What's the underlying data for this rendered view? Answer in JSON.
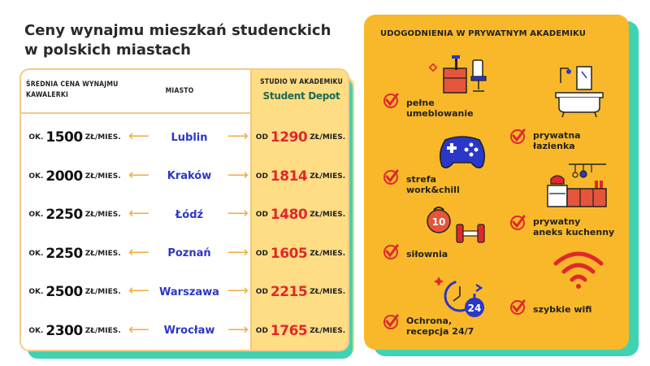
{
  "title": {
    "line1": "Ceny wynajmu mieszkań studenckich",
    "line2": "w polskich miastach"
  },
  "table": {
    "header_avg": "ŚREDNIA CENA WYNAJMU KAWALERKI",
    "header_city": "MIASTO",
    "header_sd": "STUDIO W AKADEMIKU",
    "sd_logo": "Student Depot",
    "rows": [
      {
        "avg_prefix": "OK.",
        "avg_value": "1500",
        "avg_unit": "ZŁ/MIES.",
        "city": "Lublin",
        "sd_prefix": "OD",
        "sd_value": "1290",
        "sd_unit": "ZŁ/MIES."
      },
      {
        "avg_prefix": "OK.",
        "avg_value": "2000",
        "avg_unit": "ZŁ/MIES.",
        "city": "Kraków",
        "sd_prefix": "OD",
        "sd_value": "1814",
        "sd_unit": "ZŁ/MIES."
      },
      {
        "avg_prefix": "OK.",
        "avg_value": "2250",
        "avg_unit": "ZŁ/MIES.",
        "city": "Łódź",
        "sd_prefix": "OD",
        "sd_value": "1480",
        "sd_unit": "ZŁ/MIES."
      },
      {
        "avg_prefix": "OK.",
        "avg_value": "2250",
        "avg_unit": "ZŁ/MIES.",
        "city": "Poznań",
        "sd_prefix": "OD",
        "sd_value": "1605",
        "sd_unit": "ZŁ/MIES."
      },
      {
        "avg_prefix": "OK.",
        "avg_value": "2500",
        "avg_unit": "ZŁ/MIES.",
        "city": "Warszawa",
        "sd_prefix": "OD",
        "sd_value": "2215",
        "sd_unit": "ZŁ/MIES."
      },
      {
        "avg_prefix": "OK.",
        "avg_value": "2300",
        "avg_unit": "ZŁ/MIES.",
        "city": "Wrocław",
        "sd_prefix": "OD",
        "sd_value": "1765",
        "sd_unit": "ZŁ/MIES."
      }
    ]
  },
  "panel": {
    "title": "UDOGODNIENIA W PRYWATNYM AKADEMIKU",
    "features": [
      {
        "label": "pełne\numeblowanie",
        "icon": "furniture-icon"
      },
      {
        "label": "prywatna\nłazienka",
        "icon": "bathroom-icon"
      },
      {
        "label": "strefa\nwork&chill",
        "icon": "gamepad-icon"
      },
      {
        "label": "prywatny\naneks kuchenny",
        "icon": "kitchen-icon"
      },
      {
        "label": "siłownia",
        "icon": "gym-icon"
      },
      {
        "label": "szybkie wifi",
        "icon": "wifi-icon"
      },
      {
        "label": "Ochrona,\nrecepcja 24/7",
        "icon": "security-24-icon"
      }
    ],
    "clock_label": "24"
  },
  "colors": {
    "accent_orange": "#f8b82a",
    "accent_teal": "#3fd3b3",
    "city_blue": "#2b37c7",
    "price_red": "#e0282c"
  }
}
